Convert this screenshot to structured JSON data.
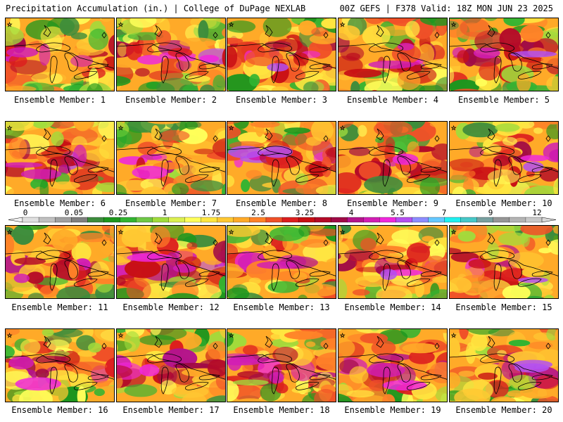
{
  "header": {
    "title": "Precipitation Accumulation (in.) | College of DuPage NEXLAB",
    "run_info": "00Z GEFS | F378 Valid: 18Z MON JUN 23 2025"
  },
  "caption_prefix": "Ensemble Member:",
  "members": [
    1,
    2,
    3,
    4,
    5,
    6,
    7,
    8,
    9,
    10,
    11,
    12,
    13,
    14,
    15,
    16,
    17,
    18,
    19,
    20
  ],
  "colorbar": {
    "labels": [
      "0",
      "0.05",
      "0.25",
      "1",
      "1.75",
      "2.5",
      "3.25",
      "4",
      "5.5",
      "7",
      "9",
      "12"
    ],
    "colors": [
      "#e0e0e0",
      "#c0c0c0",
      "#a0a0a0",
      "#808080",
      "#3c8c3c",
      "#1e961e",
      "#32b432",
      "#6ec846",
      "#a0dc3c",
      "#dcf050",
      "#ffff5a",
      "#ffe640",
      "#ffc832",
      "#ffaa28",
      "#ff8228",
      "#f05028",
      "#dc1e1e",
      "#c80f14",
      "#b40a28",
      "#a00a46",
      "#b4148c",
      "#d21eb4",
      "#f028dc",
      "#b450f0",
      "#8c8cff",
      "#64c8ff",
      "#1ef0f0",
      "#46c8c8",
      "#78a0a0",
      "#969696",
      "#b4b4b4",
      "#c8c8c8"
    ]
  }
}
